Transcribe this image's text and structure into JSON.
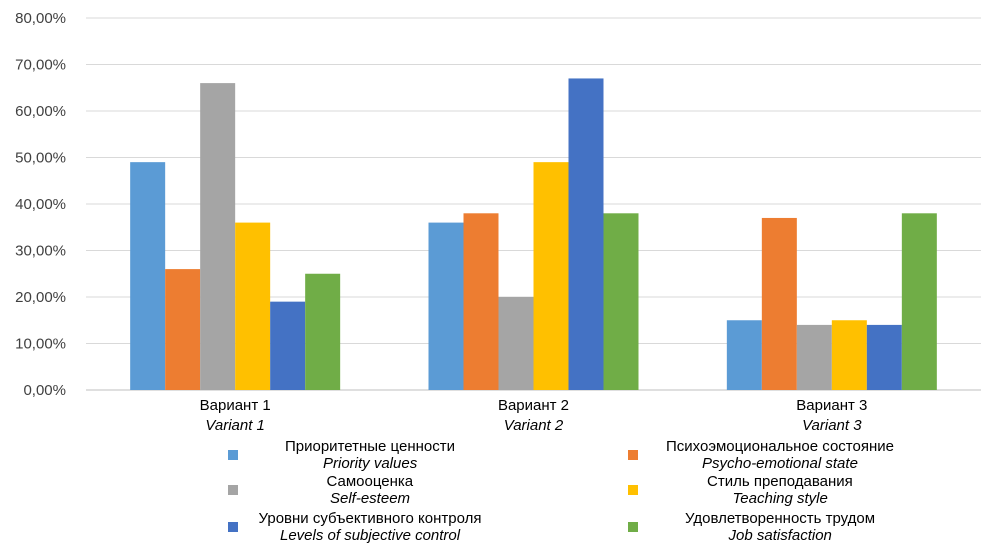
{
  "chart_data": {
    "type": "bar",
    "y_ticks": [
      "0,00%",
      "10,00%",
      "20,00%",
      "30,00%",
      "40,00%",
      "50,00%",
      "60,00%",
      "70,00%",
      "80,00%"
    ],
    "ylim": [
      0,
      80
    ],
    "grid": true,
    "legend_position": "bottom",
    "categories": [
      {
        "ru": "Вариант 1",
        "en": "Variant 1"
      },
      {
        "ru": "Вариант 2",
        "en": "Variant 2"
      },
      {
        "ru": "Вариант 3",
        "en": "Variant 3"
      }
    ],
    "series": [
      {
        "ru": "Приоритетные ценности",
        "en": "Priority values",
        "color": "#5B9BD5",
        "values": [
          49,
          36,
          15
        ]
      },
      {
        "ru": "Психоэмоциональное состояние",
        "en": "Psycho-emotional state",
        "color": "#ED7D31",
        "values": [
          26,
          38,
          37
        ]
      },
      {
        "ru": "Самооценка",
        "en": "Self-esteem",
        "color": "#A5A5A5",
        "values": [
          66,
          20,
          14
        ]
      },
      {
        "ru": "Стиль преподавания",
        "en": "Teaching style",
        "color": "#FFC000",
        "values": [
          36,
          49,
          15
        ]
      },
      {
        "ru": "Уровни субъективного контроля",
        "en": "Levels of subjective control",
        "color": "#4472C4",
        "values": [
          19,
          67,
          14
        ]
      },
      {
        "ru": "Удовлетворенность трудом",
        "en": "Job satisfaction",
        "color": "#70AD47",
        "values": [
          25,
          38,
          38
        ]
      }
    ]
  }
}
